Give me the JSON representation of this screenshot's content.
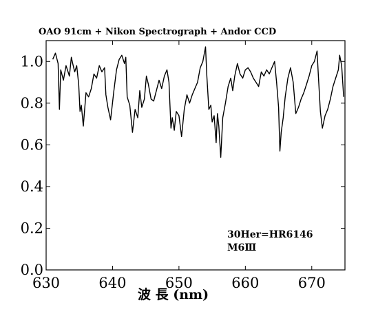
{
  "chart_data": {
    "type": "line",
    "title": "OAO 91cm + Nikon Spectrograph + Andor CCD",
    "xlabel": "波 長 (nm)",
    "ylabel": "",
    "xlim": [
      630,
      675
    ],
    "ylim": [
      0.0,
      1.1
    ],
    "xticks": [
      630,
      640,
      650,
      660,
      670
    ],
    "xtick_labels": [
      "630",
      "640",
      "650",
      "660",
      "670"
    ],
    "yticks": [
      0.0,
      0.2,
      0.4,
      0.6,
      0.8,
      1.0
    ],
    "ytick_labels": [
      "0.0",
      "0.2",
      "0.4",
      "0.6",
      "0.8",
      "1.0"
    ],
    "annotations": [
      "30Her=HR6146",
      "M6Ⅲ"
    ],
    "grid": false,
    "series": [
      {
        "x": [
          631.0,
          631.4,
          631.8,
          632.0,
          632.2,
          632.6,
          633.0,
          633.5,
          633.8,
          634.0,
          634.3,
          634.6,
          634.9,
          635.1,
          635.3,
          635.6,
          636.0,
          636.4,
          636.8,
          637.2,
          637.6,
          638.0,
          638.4,
          638.8,
          639.0,
          639.3,
          639.7,
          640.2,
          640.6,
          641.0,
          641.4,
          641.8,
          642.0,
          642.2,
          642.6,
          643.0,
          643.4,
          643.8,
          644.1,
          644.4,
          644.8,
          645.1,
          645.4,
          645.8,
          646.2,
          646.6,
          647.0,
          647.4,
          647.8,
          648.2,
          648.5,
          648.8,
          649.0,
          649.3,
          649.6,
          650.0,
          650.4,
          650.8,
          651.2,
          651.6,
          652.0,
          652.4,
          652.8,
          653.2,
          653.6,
          654.0,
          654.2,
          654.5,
          654.8,
          655.0,
          655.3,
          655.6,
          655.8,
          656.0,
          656.3,
          656.6,
          657.0,
          657.4,
          657.8,
          658.1,
          658.4,
          658.8,
          659.2,
          659.6,
          660.0,
          660.4,
          660.8,
          661.2,
          661.6,
          662.0,
          662.4,
          662.8,
          663.2,
          663.6,
          664.0,
          664.4,
          664.7,
          665.0,
          665.2,
          665.4,
          665.7,
          666.0,
          666.4,
          666.8,
          667.2,
          667.6,
          668.0,
          668.4,
          668.8,
          669.2,
          669.6,
          670.0,
          670.4,
          670.8,
          671.0,
          671.3,
          671.6,
          672.0,
          672.4,
          672.8,
          673.2,
          673.6,
          674.0,
          674.2,
          674.5,
          674.8
        ],
        "y": [
          1.01,
          1.04,
          0.99,
          0.77,
          0.96,
          0.91,
          0.98,
          0.93,
          1.02,
          0.99,
          0.95,
          0.98,
          0.89,
          0.76,
          0.79,
          0.69,
          0.85,
          0.83,
          0.87,
          0.94,
          0.92,
          0.98,
          0.95,
          0.97,
          0.84,
          0.78,
          0.72,
          0.86,
          0.96,
          1.01,
          1.03,
          0.99,
          1.02,
          0.83,
          0.79,
          0.66,
          0.77,
          0.73,
          0.86,
          0.78,
          0.82,
          0.93,
          0.89,
          0.82,
          0.81,
          0.86,
          0.91,
          0.87,
          0.93,
          0.96,
          0.9,
          0.68,
          0.73,
          0.67,
          0.76,
          0.74,
          0.64,
          0.77,
          0.84,
          0.8,
          0.84,
          0.87,
          0.9,
          0.97,
          1.0,
          1.07,
          0.93,
          0.77,
          0.79,
          0.71,
          0.74,
          0.61,
          0.75,
          0.69,
          0.54,
          0.73,
          0.8,
          0.88,
          0.92,
          0.86,
          0.93,
          0.99,
          0.94,
          0.92,
          0.96,
          0.97,
          0.95,
          0.92,
          0.9,
          0.88,
          0.95,
          0.93,
          0.96,
          0.94,
          0.97,
          1.0,
          0.9,
          0.78,
          0.57,
          0.66,
          0.73,
          0.83,
          0.92,
          0.97,
          0.9,
          0.75,
          0.78,
          0.82,
          0.85,
          0.89,
          0.93,
          0.98,
          1.0,
          1.05,
          0.93,
          0.76,
          0.68,
          0.74,
          0.77,
          0.82,
          0.88,
          0.92,
          0.96,
          1.03,
          0.98,
          0.83
        ]
      }
    ]
  }
}
